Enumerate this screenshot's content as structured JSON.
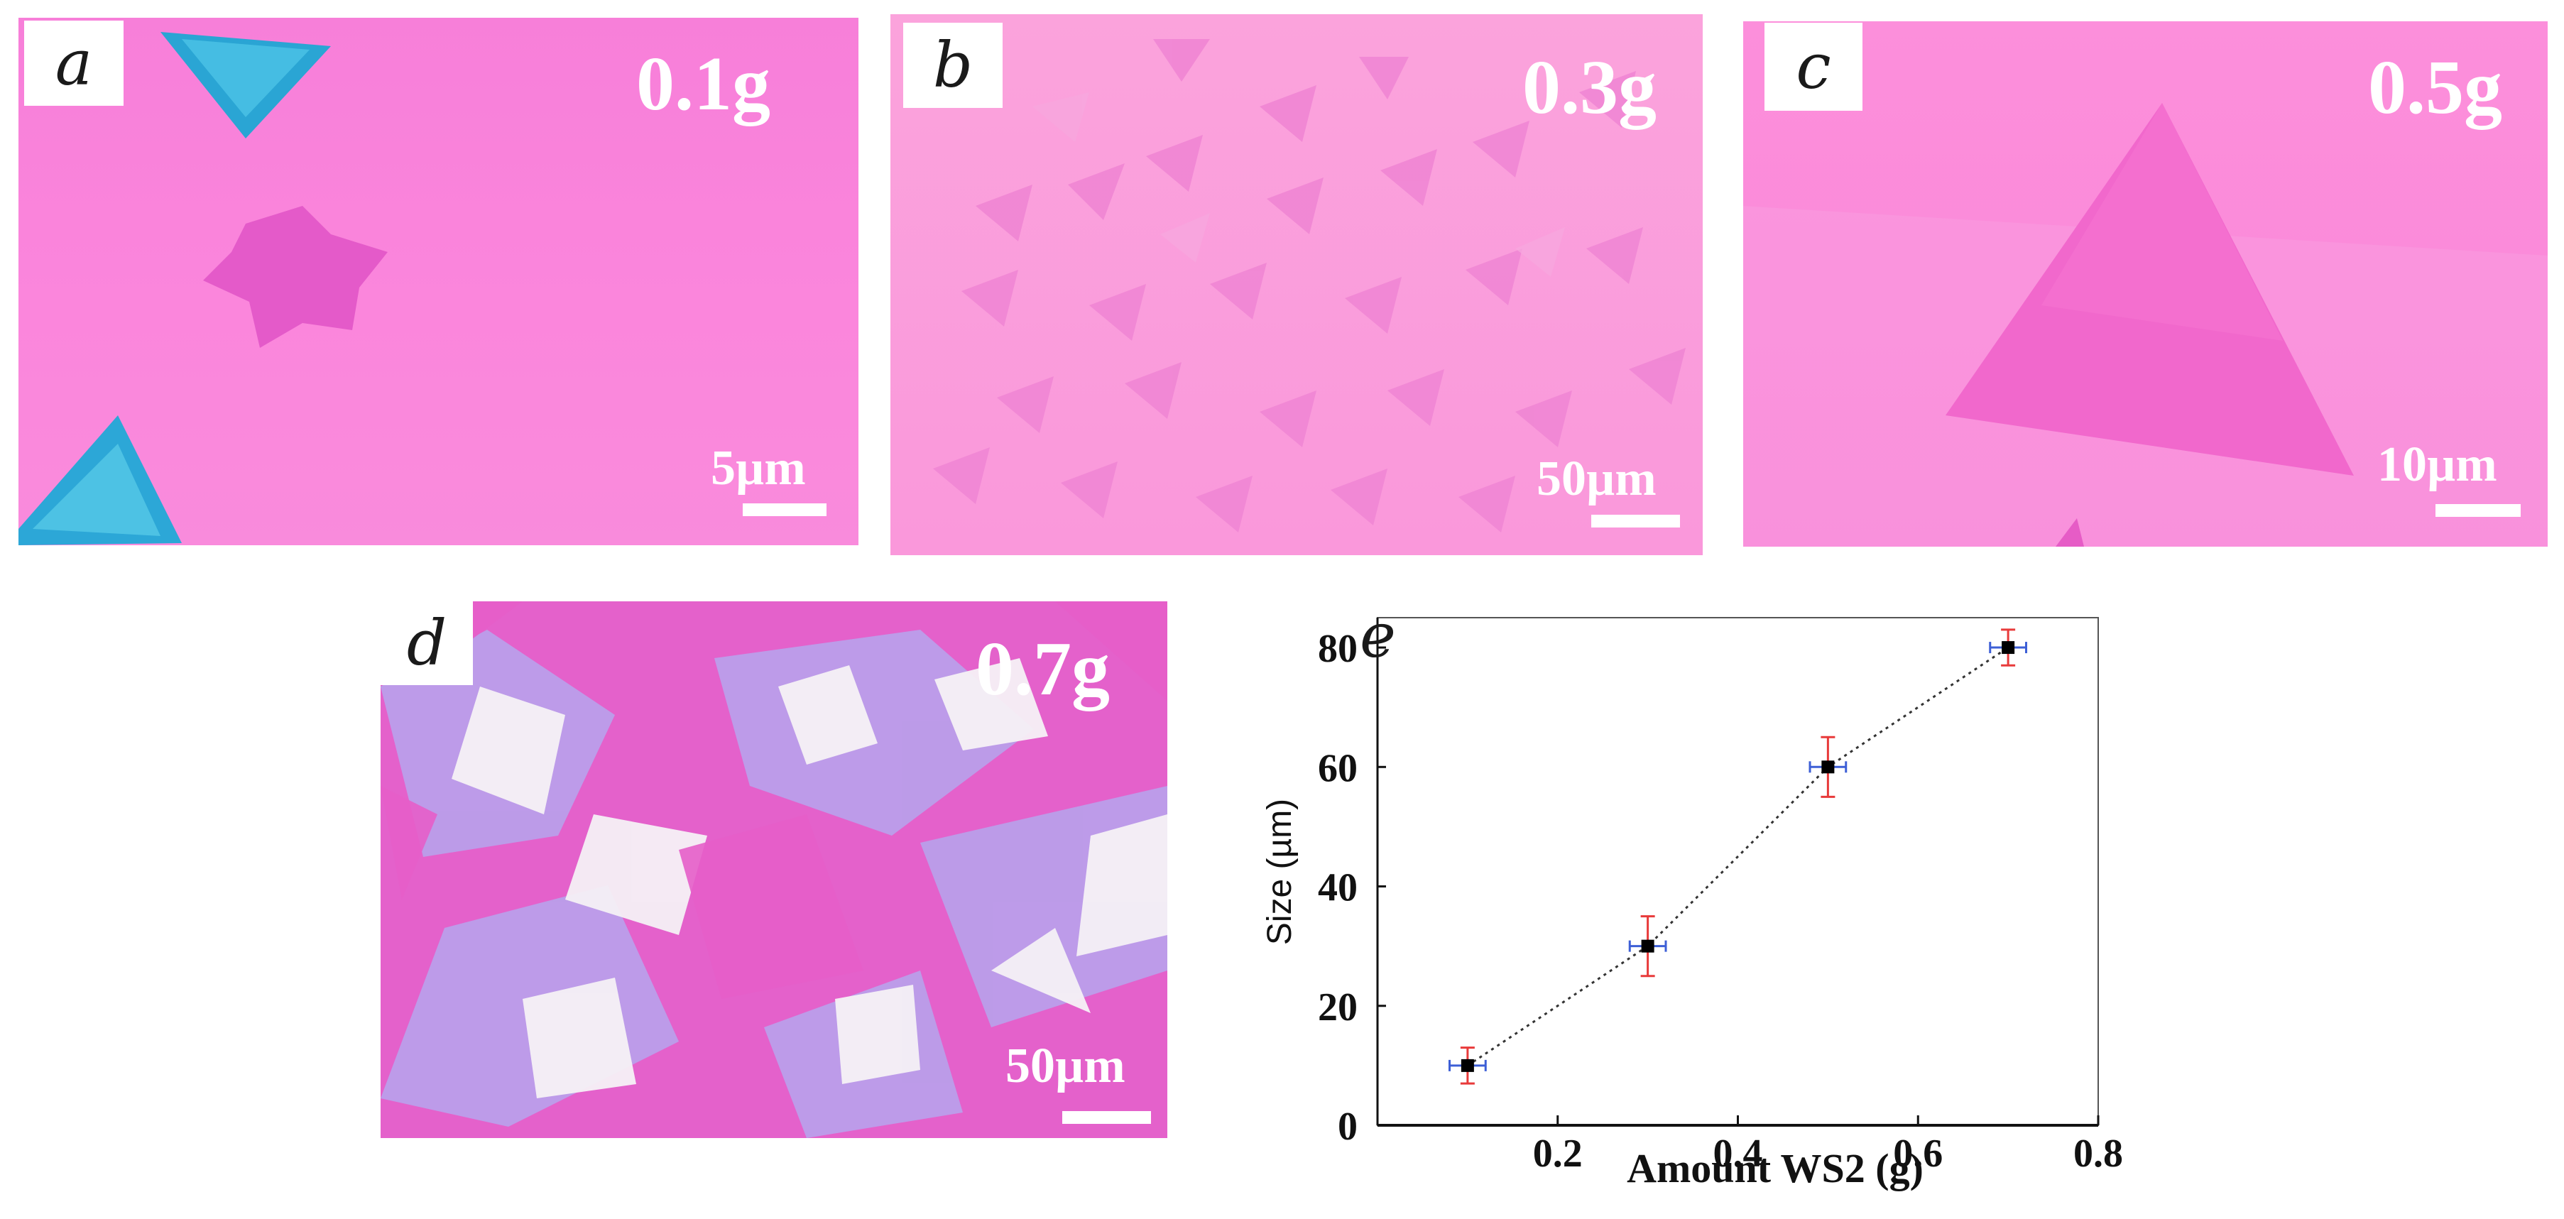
{
  "panels": {
    "a": {
      "letter": "a",
      "amount": "0.1g",
      "scale": "5µm"
    },
    "b": {
      "letter": "b",
      "amount": "0.3g",
      "scale": "50µm"
    },
    "c": {
      "letter": "c",
      "amount": "0.5g",
      "scale": "10µm"
    },
    "d": {
      "letter": "d",
      "amount": "0.7g",
      "scale": "50µm"
    },
    "e": {
      "letter": "e"
    }
  },
  "chart_data": {
    "type": "scatter",
    "x": [
      0.1,
      0.3,
      0.5,
      0.7
    ],
    "y": [
      10,
      30,
      60,
      80
    ],
    "y_err": [
      3,
      5,
      5,
      3
    ],
    "x_err": [
      0.02,
      0.02,
      0.02,
      0.02
    ],
    "connected": true,
    "line_style": "dotted",
    "xlabel": "Amount WS2 (g)",
    "ylabel": "Size (µm)",
    "xlim": [
      0,
      0.8
    ],
    "ylim": [
      0,
      85
    ],
    "x_ticks": [
      "0.2",
      "0.4",
      "0.6",
      "0.8"
    ],
    "y_ticks": [
      "0",
      "20",
      "40",
      "60",
      "80"
    ],
    "grid": false,
    "colors": {
      "marker": "#000000",
      "y_error": "#e83a3a",
      "x_error": "#3d5fd6",
      "line": "#333333"
    }
  }
}
